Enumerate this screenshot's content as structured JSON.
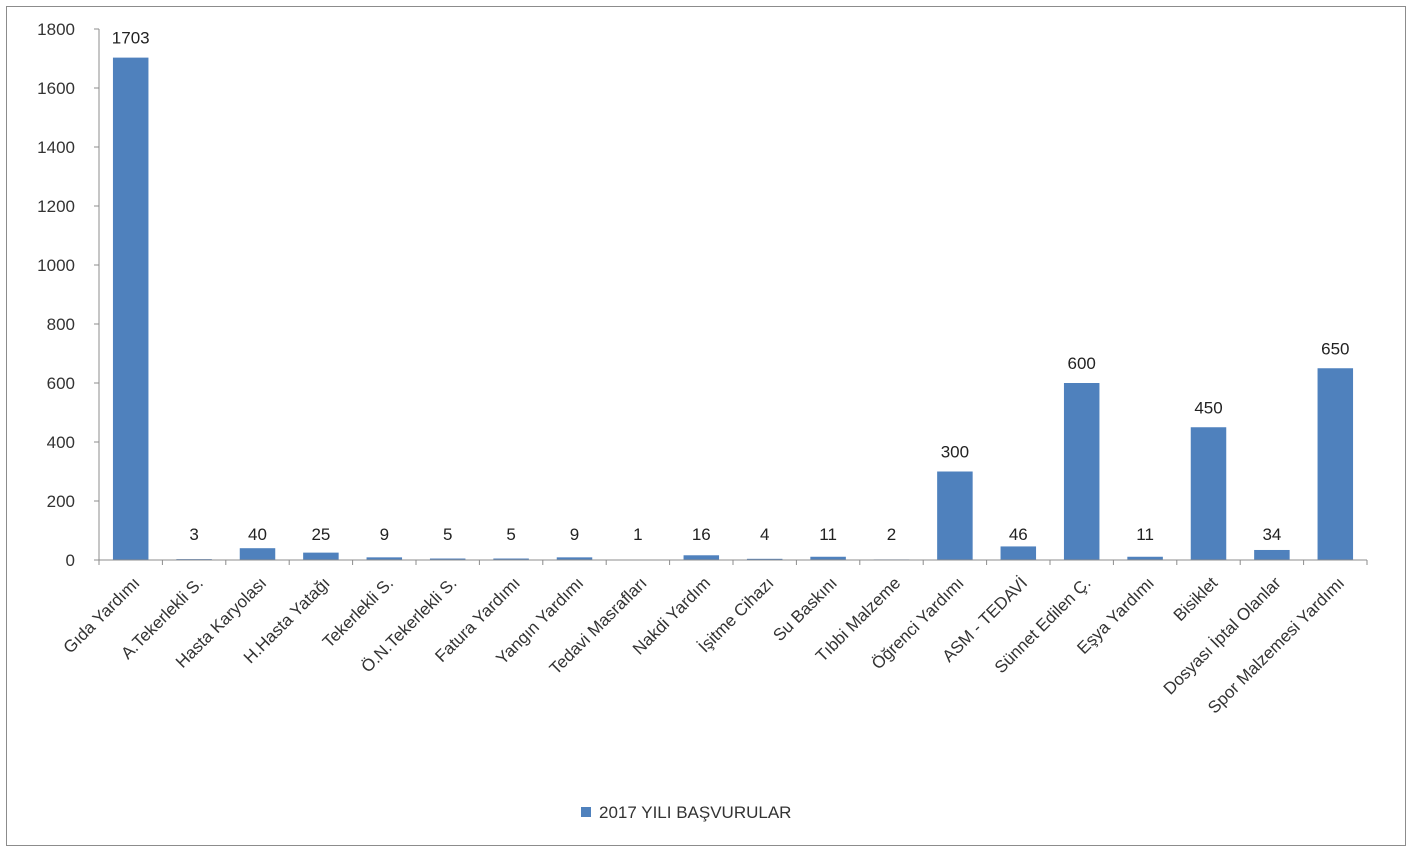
{
  "chart_data": {
    "type": "bar",
    "title": "",
    "xlabel": "",
    "ylabel": "",
    "ylim": [
      0,
      1800
    ],
    "yticks": [
      0,
      200,
      400,
      600,
      800,
      1000,
      1200,
      1400,
      1600,
      1800
    ],
    "grid": false,
    "legend_position": "bottom",
    "bar_color": "#4f81bd",
    "categories": [
      "Gıda Yardımı",
      "A.Tekerlekli S.",
      "Hasta Karyolası",
      "H.Hasta Yatağı",
      "Tekerlekli S.",
      "Ö.N.Tekerlekli S.",
      "Fatura Yardımı",
      "Yangın Yardımı",
      "Tedavi Masrafları",
      "Nakdi Yardım",
      "İşitme Cihazı",
      "Su Baskını",
      "Tıbbi Malzeme",
      "Öğrenci Yardımı",
      "ASM - TEDAVİ",
      "Sünnet Edilen Ç.",
      "Eşya Yardımı",
      "Bisiklet",
      "Dosyası İptal Olanlar",
      "Spor Malzemesi Yardımı"
    ],
    "series": [
      {
        "name": "2017 YILI BAŞVURULAR",
        "values": [
          1703,
          3,
          40,
          25,
          9,
          5,
          5,
          9,
          1,
          16,
          4,
          11,
          2,
          300,
          46,
          600,
          11,
          450,
          34,
          650
        ]
      }
    ]
  }
}
